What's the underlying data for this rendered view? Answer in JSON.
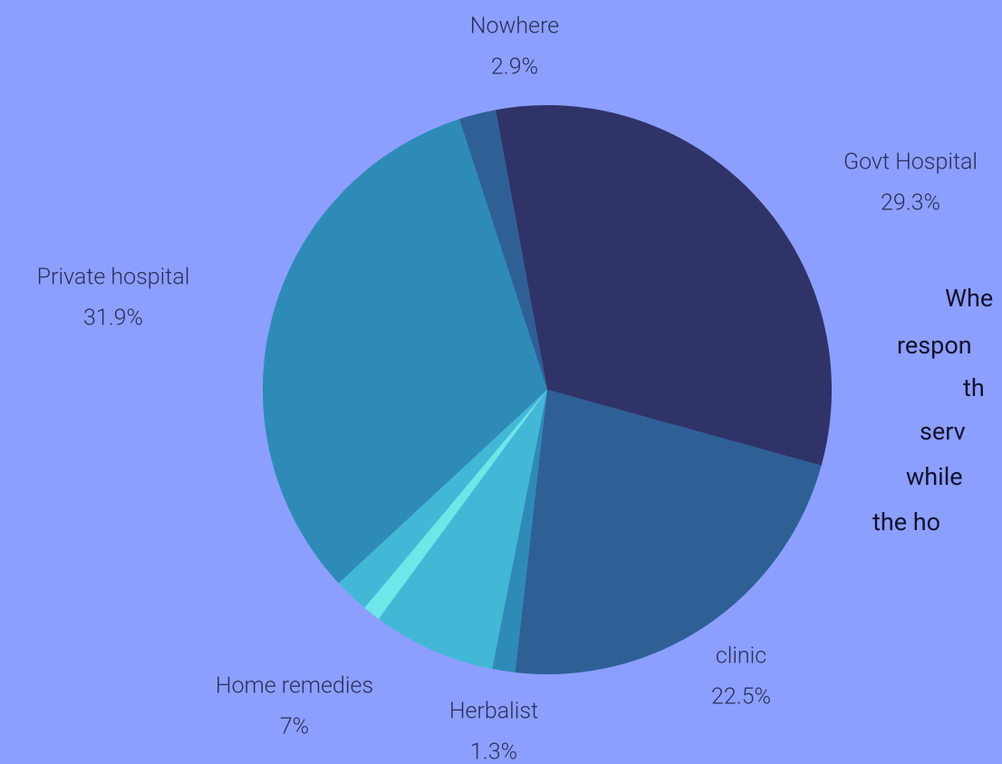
{
  "chart_data": {
    "type": "pie",
    "categories": [
      "Govt Hospital",
      "clinic",
      "Herbalist",
      "Home remedies",
      null,
      null,
      "Private hospital",
      null,
      "Nowhere"
    ],
    "values": [
      29.3,
      22.5,
      1.3,
      7,
      1,
      2,
      31.9,
      2.1,
      2.9
    ],
    "value_labels": [
      "29.3%",
      "22.5%",
      "1.3%",
      "7%",
      null,
      null,
      "31.9%",
      null,
      "2.9%"
    ],
    "colors": [
      "#2f3368",
      "#2e6096",
      "#2e8bb8",
      "#42b8d6",
      "#6fe6e8",
      "#42b8d6",
      "#2e8bb8",
      "#2e6096",
      "#2f3368"
    ],
    "annotation": [
      "Whe",
      "respon",
      "th",
      "serv",
      "while",
      "the ho"
    ]
  }
}
